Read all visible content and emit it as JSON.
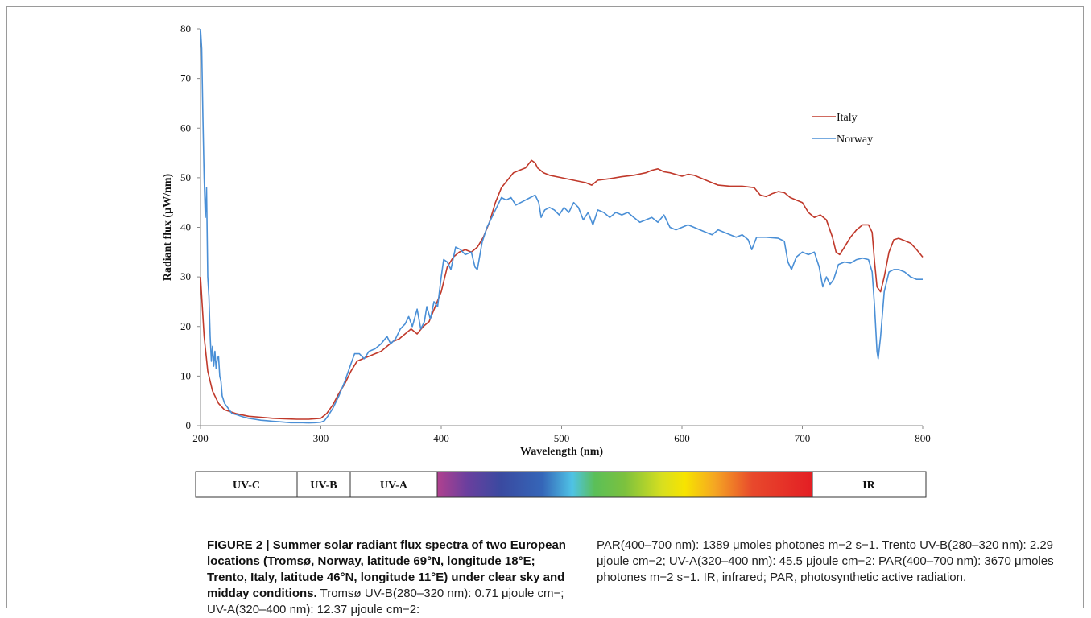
{
  "chart_data": {
    "type": "line",
    "title": "",
    "xlabel": "Wavelength (nm)",
    "ylabel": "Radiant flux (µW/nm)",
    "xlim": [
      200,
      800
    ],
    "ylim": [
      0,
      80
    ],
    "x_ticks": [
      "200",
      "300",
      "400",
      "500",
      "600",
      "700",
      "800"
    ],
    "y_ticks": [
      "0",
      "10",
      "20",
      "30",
      "40",
      "50",
      "60",
      "70",
      "80"
    ],
    "grid": false,
    "legend_position": "top-right",
    "series": [
      {
        "name": "Italy",
        "color": "#c0392b",
        "points": [
          [
            200,
            30
          ],
          [
            203,
            18
          ],
          [
            206,
            11
          ],
          [
            210,
            7
          ],
          [
            215,
            4.5
          ],
          [
            220,
            3.2
          ],
          [
            230,
            2.4
          ],
          [
            240,
            1.9
          ],
          [
            250,
            1.7
          ],
          [
            260,
            1.5
          ],
          [
            270,
            1.4
          ],
          [
            280,
            1.3
          ],
          [
            290,
            1.3
          ],
          [
            300,
            1.5
          ],
          [
            305,
            2.5
          ],
          [
            310,
            4.2
          ],
          [
            315,
            6.5
          ],
          [
            320,
            8.5
          ],
          [
            325,
            11
          ],
          [
            330,
            13
          ],
          [
            335,
            13.5
          ],
          [
            340,
            14
          ],
          [
            345,
            14.5
          ],
          [
            350,
            15
          ],
          [
            355,
            16
          ],
          [
            360,
            17
          ],
          [
            365,
            17.5
          ],
          [
            370,
            18.5
          ],
          [
            375,
            19.5
          ],
          [
            380,
            18.5
          ],
          [
            385,
            20
          ],
          [
            390,
            21
          ],
          [
            395,
            24
          ],
          [
            400,
            27
          ],
          [
            405,
            32
          ],
          [
            410,
            34
          ],
          [
            415,
            35
          ],
          [
            420,
            35.5
          ],
          [
            425,
            35
          ],
          [
            430,
            36
          ],
          [
            435,
            38
          ],
          [
            440,
            41
          ],
          [
            445,
            45
          ],
          [
            450,
            48
          ],
          [
            455,
            49.5
          ],
          [
            460,
            51
          ],
          [
            465,
            51.5
          ],
          [
            470,
            52
          ],
          [
            475,
            53.5
          ],
          [
            478,
            53
          ],
          [
            480,
            52
          ],
          [
            485,
            51
          ],
          [
            490,
            50.5
          ],
          [
            500,
            50
          ],
          [
            510,
            49.5
          ],
          [
            520,
            49
          ],
          [
            525,
            48.5
          ],
          [
            530,
            49.5
          ],
          [
            540,
            49.8
          ],
          [
            550,
            50.2
          ],
          [
            560,
            50.5
          ],
          [
            570,
            51
          ],
          [
            575,
            51.5
          ],
          [
            580,
            51.8
          ],
          [
            585,
            51.2
          ],
          [
            590,
            51
          ],
          [
            600,
            50.3
          ],
          [
            605,
            50.7
          ],
          [
            610,
            50.5
          ],
          [
            620,
            49.5
          ],
          [
            630,
            48.5
          ],
          [
            640,
            48.3
          ],
          [
            650,
            48.3
          ],
          [
            660,
            48
          ],
          [
            665,
            46.5
          ],
          [
            670,
            46.2
          ],
          [
            675,
            46.8
          ],
          [
            680,
            47.2
          ],
          [
            685,
            47
          ],
          [
            690,
            46
          ],
          [
            695,
            45.5
          ],
          [
            700,
            45
          ],
          [
            705,
            43
          ],
          [
            710,
            42
          ],
          [
            715,
            42.5
          ],
          [
            720,
            41.5
          ],
          [
            725,
            38
          ],
          [
            728,
            35
          ],
          [
            731,
            34.5
          ],
          [
            735,
            36
          ],
          [
            740,
            38
          ],
          [
            745,
            39.5
          ],
          [
            750,
            40.5
          ],
          [
            755,
            40.5
          ],
          [
            758,
            39
          ],
          [
            760,
            33
          ],
          [
            762,
            28
          ],
          [
            765,
            27
          ],
          [
            768,
            30
          ],
          [
            772,
            35
          ],
          [
            776,
            37.5
          ],
          [
            780,
            37.8
          ],
          [
            785,
            37.3
          ],
          [
            790,
            36.8
          ],
          [
            795,
            35.5
          ],
          [
            800,
            34
          ]
        ]
      },
      {
        "name": "Norway",
        "color": "#4a8fd6",
        "points": [
          [
            200,
            80
          ],
          [
            201,
            76
          ],
          [
            202,
            62
          ],
          [
            203,
            50
          ],
          [
            204,
            42
          ],
          [
            205,
            48
          ],
          [
            206,
            30
          ],
          [
            207,
            26
          ],
          [
            208,
            18
          ],
          [
            209,
            13
          ],
          [
            210,
            16
          ],
          [
            211,
            12
          ],
          [
            212,
            15
          ],
          [
            213,
            11.5
          ],
          [
            214,
            13.5
          ],
          [
            215,
            14
          ],
          [
            216,
            10
          ],
          [
            217,
            9
          ],
          [
            218,
            6
          ],
          [
            220,
            4.5
          ],
          [
            223,
            3.5
          ],
          [
            226,
            2.5
          ],
          [
            230,
            2.2
          ],
          [
            235,
            1.8
          ],
          [
            240,
            1.5
          ],
          [
            245,
            1.3
          ],
          [
            250,
            1.1
          ],
          [
            255,
            1
          ],
          [
            260,
            0.9
          ],
          [
            265,
            0.8
          ],
          [
            270,
            0.7
          ],
          [
            275,
            0.6
          ],
          [
            280,
            0.6
          ],
          [
            285,
            0.6
          ],
          [
            290,
            0.55
          ],
          [
            295,
            0.6
          ],
          [
            300,
            0.7
          ],
          [
            303,
            1
          ],
          [
            306,
            2
          ],
          [
            310,
            3.5
          ],
          [
            315,
            6
          ],
          [
            320,
            9
          ],
          [
            325,
            12.5
          ],
          [
            328,
            14.5
          ],
          [
            332,
            14.5
          ],
          [
            336,
            13.5
          ],
          [
            340,
            15
          ],
          [
            345,
            15.5
          ],
          [
            350,
            16.5
          ],
          [
            355,
            18
          ],
          [
            358,
            16.5
          ],
          [
            362,
            17.5
          ],
          [
            366,
            19.5
          ],
          [
            370,
            20.5
          ],
          [
            373,
            22
          ],
          [
            376,
            20
          ],
          [
            380,
            23.5
          ],
          [
            383,
            19.5
          ],
          [
            386,
            21
          ],
          [
            388,
            24
          ],
          [
            391,
            21.5
          ],
          [
            394,
            25
          ],
          [
            397,
            24
          ],
          [
            400,
            30
          ],
          [
            402,
            33.5
          ],
          [
            405,
            33
          ],
          [
            408,
            31.5
          ],
          [
            412,
            36
          ],
          [
            416,
            35.5
          ],
          [
            420,
            34.5
          ],
          [
            425,
            35
          ],
          [
            428,
            32
          ],
          [
            430,
            31.5
          ],
          [
            434,
            37
          ],
          [
            438,
            40
          ],
          [
            442,
            42
          ],
          [
            446,
            44
          ],
          [
            450,
            46
          ],
          [
            454,
            45.5
          ],
          [
            458,
            46
          ],
          [
            462,
            44.5
          ],
          [
            466,
            45
          ],
          [
            470,
            45.5
          ],
          [
            474,
            46
          ],
          [
            478,
            46.5
          ],
          [
            481,
            45
          ],
          [
            483,
            42
          ],
          [
            486,
            43.5
          ],
          [
            490,
            44
          ],
          [
            494,
            43.5
          ],
          [
            498,
            42.5
          ],
          [
            502,
            44
          ],
          [
            506,
            43
          ],
          [
            510,
            45
          ],
          [
            514,
            44
          ],
          [
            518,
            41.5
          ],
          [
            522,
            43
          ],
          [
            526,
            40.5
          ],
          [
            530,
            43.5
          ],
          [
            535,
            43
          ],
          [
            540,
            42
          ],
          [
            545,
            43
          ],
          [
            550,
            42.5
          ],
          [
            555,
            43
          ],
          [
            560,
            42
          ],
          [
            565,
            41
          ],
          [
            570,
            41.5
          ],
          [
            575,
            42
          ],
          [
            580,
            41
          ],
          [
            585,
            42.5
          ],
          [
            590,
            40
          ],
          [
            595,
            39.5
          ],
          [
            600,
            40
          ],
          [
            605,
            40.5
          ],
          [
            610,
            40
          ],
          [
            615,
            39.5
          ],
          [
            620,
            39
          ],
          [
            625,
            38.5
          ],
          [
            630,
            39.5
          ],
          [
            640,
            38.5
          ],
          [
            645,
            38
          ],
          [
            650,
            38.5
          ],
          [
            655,
            37.5
          ],
          [
            658,
            35.5
          ],
          [
            662,
            38
          ],
          [
            670,
            38
          ],
          [
            680,
            37.8
          ],
          [
            685,
            37.2
          ],
          [
            688,
            33
          ],
          [
            691,
            31.5
          ],
          [
            695,
            34
          ],
          [
            700,
            35
          ],
          [
            705,
            34.5
          ],
          [
            710,
            35
          ],
          [
            714,
            32
          ],
          [
            717,
            28
          ],
          [
            720,
            30
          ],
          [
            723,
            28.5
          ],
          [
            726,
            29.5
          ],
          [
            730,
            32.5
          ],
          [
            735,
            33
          ],
          [
            740,
            32.8
          ],
          [
            745,
            33.5
          ],
          [
            750,
            33.8
          ],
          [
            755,
            33.5
          ],
          [
            758,
            31
          ],
          [
            760,
            24
          ],
          [
            762,
            15
          ],
          [
            763,
            13.5
          ],
          [
            765,
            18
          ],
          [
            768,
            27
          ],
          [
            772,
            31
          ],
          [
            776,
            31.5
          ],
          [
            780,
            31.5
          ],
          [
            785,
            31
          ],
          [
            790,
            30
          ],
          [
            795,
            29.5
          ],
          [
            800,
            29.5
          ]
        ]
      }
    ]
  },
  "spectrum_bar": {
    "labels": [
      "UV-C",
      "UV-B",
      "UV-A",
      "IR"
    ]
  },
  "caption": {
    "title": "FIGURE 2 | Summer solar radiant flux spectra of two European locations (Tromsø, Norway, latitude 69°N, longitude 18°E; Trento, Italy, latitude 46°N, longitude 11°E) under clear sky and midday conditions.",
    "text_left": "Tromsø UV-B(280–320 nm): 0.71 μjoule cm−; UV-A(320–400 nm): 12.37 μjoule cm−2:",
    "text_right": "PAR(400–700 nm): 1389 μmoles photones m−2 s−1. Trento UV-B(280–320 nm): 2.29 μjoule cm−2; UV-A(320–400 nm): 45.5 μjoule cm−2: PAR(400–700 nm): 3670 μmoles photones m−2 s−1. IR, infrared; PAR, photosynthetic active radiation."
  }
}
